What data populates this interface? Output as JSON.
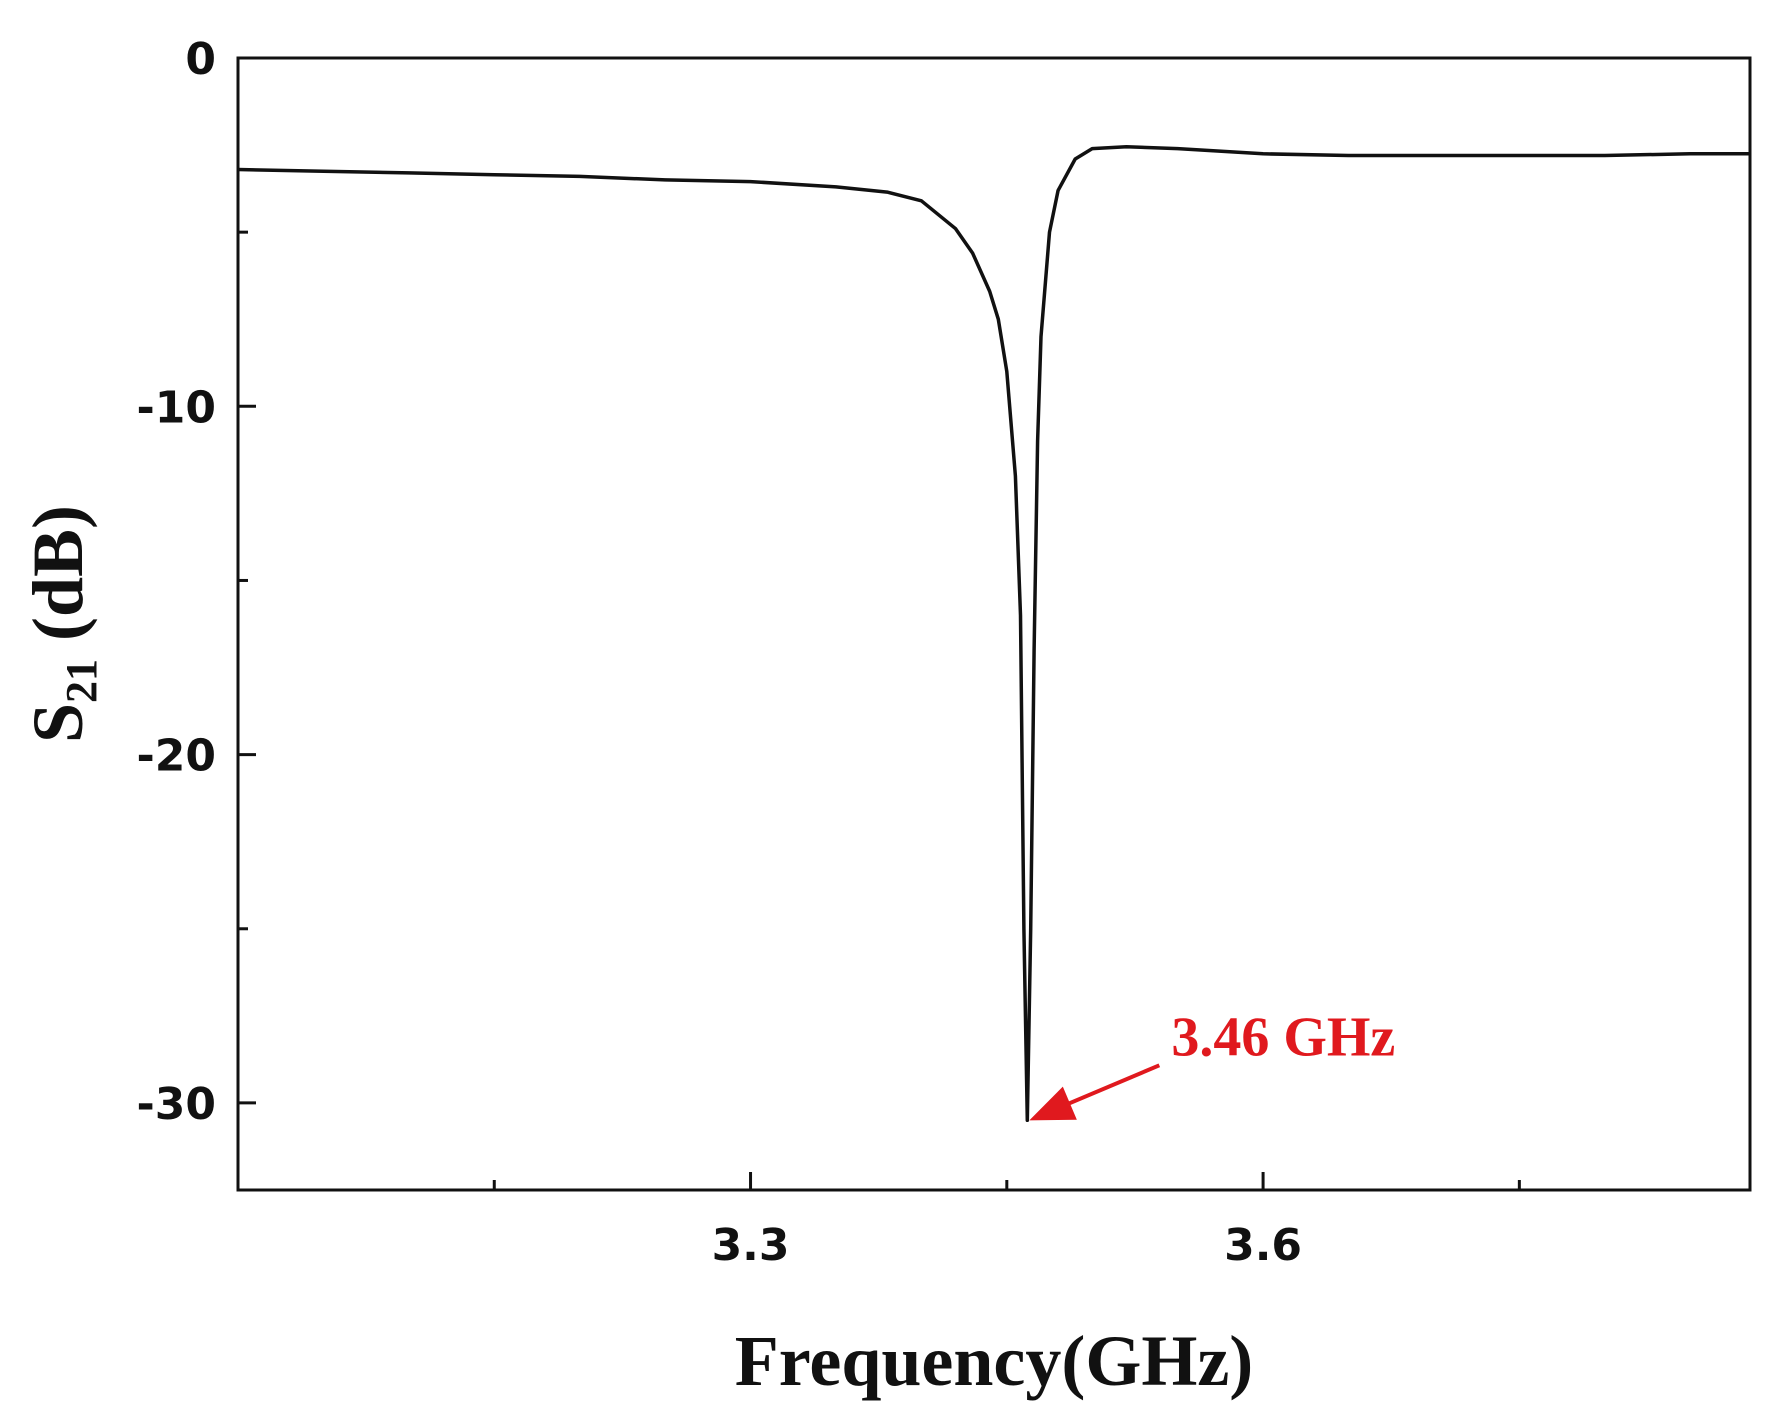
{
  "chart_data": {
    "type": "line",
    "title": "",
    "xlabel": "Frequency(GHz)",
    "ylabel": {
      "base": "S",
      "sub": "21",
      "unit": " (dB)"
    },
    "xlim": [
      3.0,
      3.885
    ],
    "ylim": [
      -32.5,
      0
    ],
    "xticks": [
      {
        "value": 3.3,
        "label": "3.3"
      },
      {
        "value": 3.6,
        "label": "3.6"
      }
    ],
    "x_minor_ticks": [
      3.15,
      3.45,
      3.75
    ],
    "yticks": [
      {
        "value": 0,
        "label": "0"
      },
      {
        "value": -10,
        "label": "-10"
      },
      {
        "value": -20,
        "label": "-20"
      },
      {
        "value": -30,
        "label": "-30"
      }
    ],
    "y_minor_ticks": [
      -5,
      -15,
      -25
    ],
    "grid": false,
    "line_color": "#111111",
    "series": [
      {
        "x": [
          3.0,
          3.05,
          3.1,
          3.15,
          3.2,
          3.25,
          3.3,
          3.35,
          3.38,
          3.4,
          3.42,
          3.43,
          3.44,
          3.445,
          3.45,
          3.455,
          3.458,
          3.46,
          3.462,
          3.464,
          3.466,
          3.468,
          3.47,
          3.475,
          3.48,
          3.49,
          3.5,
          3.52,
          3.55,
          3.6,
          3.65,
          3.7,
          3.75,
          3.8,
          3.85,
          3.885
        ],
        "y": [
          -3.2,
          -3.25,
          -3.3,
          -3.35,
          -3.4,
          -3.5,
          -3.55,
          -3.7,
          -3.85,
          -4.1,
          -4.9,
          -5.6,
          -6.7,
          -7.5,
          -9.0,
          -12.0,
          -16.0,
          -25.0,
          -30.5,
          -25.0,
          -17.0,
          -11.0,
          -8.0,
          -5.0,
          -3.8,
          -2.9,
          -2.6,
          -2.55,
          -2.6,
          -2.75,
          -2.8,
          -2.8,
          -2.8,
          -2.8,
          -2.75,
          -2.75
        ]
      }
    ],
    "annotation": {
      "text": "3.46 GHz",
      "x": 3.462,
      "y": -30.5,
      "color": "#e0191e"
    }
  }
}
